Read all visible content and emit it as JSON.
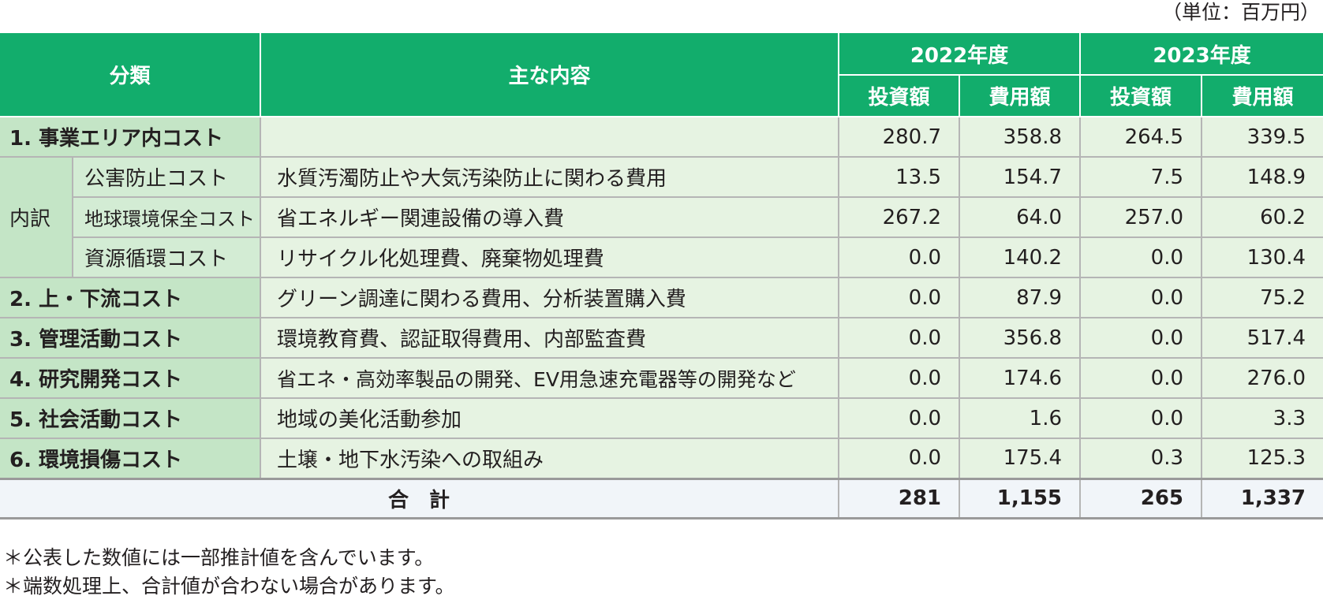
{
  "unit_label": "（単位：百万円）",
  "header": {
    "category": "分類",
    "content": "主な内容",
    "year1": "2022年度",
    "year2": "2023年度",
    "investment": "投資額",
    "expense": "費用額"
  },
  "rows": [
    {
      "category": "1. 事業エリア内コスト",
      "content": "",
      "inv2022": "280.7",
      "exp2022": "358.8",
      "inv2023": "264.5",
      "exp2023": "339.5"
    },
    {
      "category": "公害防止コスト",
      "content": "水質汚濁防止や大気汚染防止に関わる費用",
      "inv2022": "13.5",
      "exp2022": "154.7",
      "inv2023": "7.5",
      "exp2023": "148.9"
    },
    {
      "category": "地球環境保全コスト",
      "content": "省エネルギー関連設備の導入費",
      "inv2022": "267.2",
      "exp2022": "64.0",
      "inv2023": "257.0",
      "exp2023": "60.2"
    },
    {
      "category": "資源循環コスト",
      "content": "リサイクル化処理費、廃棄物処理費",
      "inv2022": "0.0",
      "exp2022": "140.2",
      "inv2023": "0.0",
      "exp2023": "130.4"
    },
    {
      "category": "2. 上・下流コスト",
      "content": "グリーン調達に関わる費用、分析装置購入費",
      "inv2022": "0.0",
      "exp2022": "87.9",
      "inv2023": "0.0",
      "exp2023": "75.2"
    },
    {
      "category": "3. 管理活動コスト",
      "content": "環境教育費、認証取得費用、内部監査費",
      "inv2022": "0.0",
      "exp2022": "356.8",
      "inv2023": "0.0",
      "exp2023": "517.4"
    },
    {
      "category": "4. 研究開発コスト",
      "content": "省エネ・高効率製品の開発、EV用急速充電器等の開発など",
      "inv2022": "0.0",
      "exp2022": "174.6",
      "inv2023": "0.0",
      "exp2023": "276.0"
    },
    {
      "category": "5. 社会活動コスト",
      "content": "地域の美化活動参加",
      "inv2022": "0.0",
      "exp2022": "1.6",
      "inv2023": "0.0",
      "exp2023": "3.3"
    },
    {
      "category": "6. 環境損傷コスト",
      "content": "土壌・地下水汚染への取組み",
      "inv2022": "0.0",
      "exp2022": "175.4",
      "inv2023": "0.3",
      "exp2023": "125.3"
    }
  ],
  "breakdown_label": "内訳",
  "total": {
    "label": "合　計",
    "inv2022": "281",
    "exp2022": "1,155",
    "inv2023": "265",
    "exp2023": "1,337"
  },
  "notes": [
    "＊公表した数値には一部推計値を含んでいます。",
    "＊端数処理上、合計値が合わない場合があります。"
  ]
}
